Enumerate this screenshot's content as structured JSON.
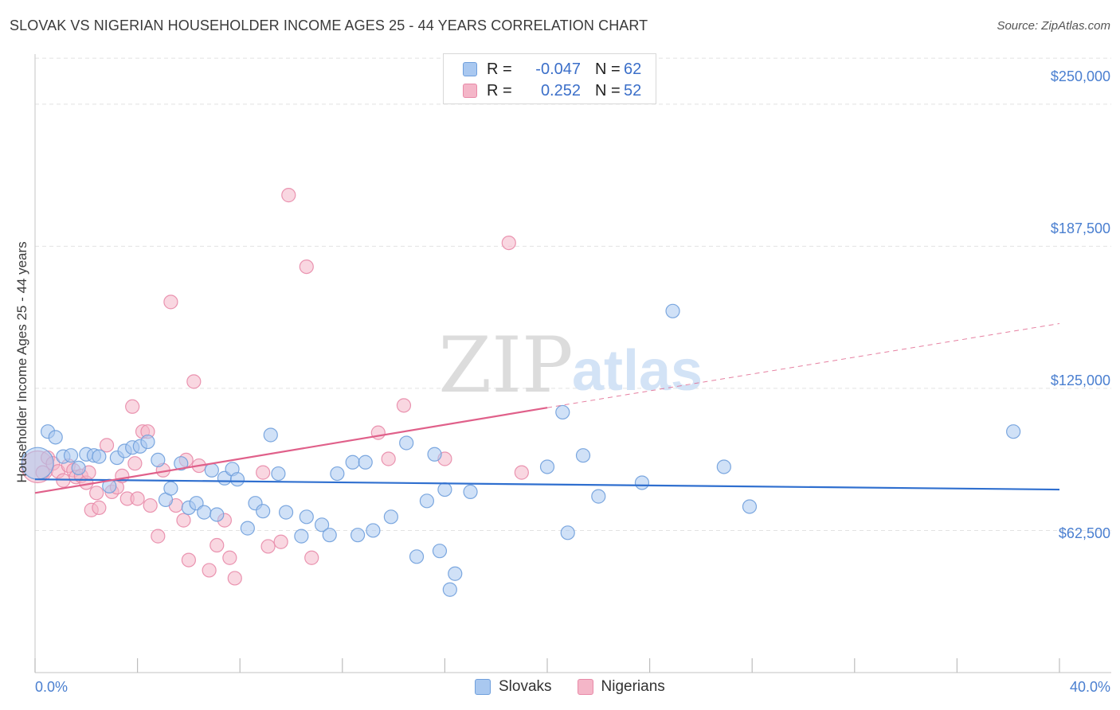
{
  "header": {
    "title": "SLOVAK VS NIGERIAN HOUSEHOLDER INCOME AGES 25 - 44 YEARS CORRELATION CHART",
    "source": "Source: ZipAtlas.com"
  },
  "watermark": {
    "part1": "ZIP",
    "part2": "atlas"
  },
  "legend_top": {
    "rows": [
      {
        "r_label": "R =",
        "r_value": "-0.047",
        "n_label": "N =",
        "n_value": "62",
        "color": "#a9c8f0"
      },
      {
        "r_label": "R =",
        "r_value": "0.252",
        "n_label": "N =",
        "n_value": "52",
        "color": "#f4b6c8"
      }
    ]
  },
  "legend_bottom": {
    "items": [
      "Slovaks",
      "Nigerians"
    ]
  },
  "colors": {
    "slovak_fill": "#a9c8f0",
    "slovak_stroke": "#6f9fdc",
    "slovak_line": "#2f6fcf",
    "nigerian_fill": "#f4b6c8",
    "nigerian_stroke": "#e88aa8",
    "nigerian_line": "#e0608a",
    "tick_label": "#4a7fd0",
    "grid": "#e2e2e2"
  },
  "chart_data": {
    "type": "scatter",
    "title": "SLOVAK VS NIGERIAN HOUSEHOLDER INCOME AGES 25 - 44 YEARS CORRELATION CHART",
    "xlabel": "",
    "ylabel": "Householder Income Ages 25 - 44 years",
    "xlim": [
      0,
      40
    ],
    "ylim": [
      0,
      272000
    ],
    "x_tick_labels": [
      "0.0%",
      "40.0%"
    ],
    "y_ticks": [
      62500,
      125000,
      187500,
      250000
    ],
    "y_tick_labels": [
      "$62,500",
      "$125,000",
      "$187,500",
      "$250,000"
    ],
    "grid": true,
    "legend_position": "top-center",
    "series": [
      {
        "name": "Slovaks",
        "r": -0.047,
        "n": 62,
        "trend": {
          "x": [
            0,
            40
          ],
          "y": [
            85000,
            80500
          ],
          "dashed_from": null
        },
        "points": [
          {
            "x": 0.1,
            "y": 92000,
            "big": true
          },
          {
            "x": 0.5,
            "y": 106000
          },
          {
            "x": 0.8,
            "y": 103500
          },
          {
            "x": 1.1,
            "y": 95000
          },
          {
            "x": 1.4,
            "y": 95500
          },
          {
            "x": 1.7,
            "y": 90000
          },
          {
            "x": 2.0,
            "y": 96000
          },
          {
            "x": 2.3,
            "y": 95500
          },
          {
            "x": 2.5,
            "y": 95000
          },
          {
            "x": 2.9,
            "y": 82000
          },
          {
            "x": 3.2,
            "y": 94500
          },
          {
            "x": 3.5,
            "y": 97500
          },
          {
            "x": 3.8,
            "y": 99000
          },
          {
            "x": 4.1,
            "y": 99500
          },
          {
            "x": 4.4,
            "y": 101500
          },
          {
            "x": 4.8,
            "y": 93500
          },
          {
            "x": 5.1,
            "y": 76000
          },
          {
            "x": 5.3,
            "y": 81000
          },
          {
            "x": 5.7,
            "y": 92000
          },
          {
            "x": 6.0,
            "y": 72500
          },
          {
            "x": 6.3,
            "y": 74500
          },
          {
            "x": 6.6,
            "y": 70500
          },
          {
            "x": 6.9,
            "y": 89000
          },
          {
            "x": 7.1,
            "y": 69500
          },
          {
            "x": 7.4,
            "y": 85500
          },
          {
            "x": 7.7,
            "y": 89500
          },
          {
            "x": 7.9,
            "y": 85000
          },
          {
            "x": 8.3,
            "y": 63500
          },
          {
            "x": 8.6,
            "y": 74500
          },
          {
            "x": 8.9,
            "y": 71000
          },
          {
            "x": 9.2,
            "y": 104500
          },
          {
            "x": 9.5,
            "y": 87500
          },
          {
            "x": 9.8,
            "y": 70500
          },
          {
            "x": 10.4,
            "y": 60000
          },
          {
            "x": 10.6,
            "y": 68500
          },
          {
            "x": 11.2,
            "y": 65000
          },
          {
            "x": 11.5,
            "y": 60500
          },
          {
            "x": 11.8,
            "y": 87500
          },
          {
            "x": 12.4,
            "y": 92500
          },
          {
            "x": 12.6,
            "y": 60500
          },
          {
            "x": 12.9,
            "y": 92500
          },
          {
            "x": 13.2,
            "y": 62500
          },
          {
            "x": 13.9,
            "y": 68500
          },
          {
            "x": 14.5,
            "y": 101000
          },
          {
            "x": 14.9,
            "y": 51000
          },
          {
            "x": 15.3,
            "y": 75500
          },
          {
            "x": 15.6,
            "y": 96000
          },
          {
            "x": 15.8,
            "y": 53500
          },
          {
            "x": 16.0,
            "y": 80500
          },
          {
            "x": 16.2,
            "y": 36500
          },
          {
            "x": 16.4,
            "y": 43500
          },
          {
            "x": 17.0,
            "y": 79500
          },
          {
            "x": 20.0,
            "y": 90500
          },
          {
            "x": 20.6,
            "y": 114500
          },
          {
            "x": 20.8,
            "y": 61500
          },
          {
            "x": 21.4,
            "y": 95500
          },
          {
            "x": 22.0,
            "y": 77500
          },
          {
            "x": 23.7,
            "y": 83500
          },
          {
            "x": 24.9,
            "y": 159000
          },
          {
            "x": 26.9,
            "y": 90500
          },
          {
            "x": 27.9,
            "y": 73000
          },
          {
            "x": 38.2,
            "y": 106000
          }
        ]
      },
      {
        "name": "Nigerians",
        "r": 0.252,
        "n": 52,
        "trend": {
          "x": [
            0,
            20,
            40
          ],
          "y": [
            79000,
            116500,
            153500
          ],
          "dashed_from": 20
        },
        "points": [
          {
            "x": 0.1,
            "y": 90500,
            "big": true
          },
          {
            "x": 0.3,
            "y": 88000
          },
          {
            "x": 0.5,
            "y": 94500
          },
          {
            "x": 0.7,
            "y": 92000
          },
          {
            "x": 0.9,
            "y": 88500
          },
          {
            "x": 1.1,
            "y": 84500
          },
          {
            "x": 1.3,
            "y": 91000
          },
          {
            "x": 1.5,
            "y": 89000
          },
          {
            "x": 1.6,
            "y": 86000
          },
          {
            "x": 1.8,
            "y": 86500
          },
          {
            "x": 2.0,
            "y": 83500
          },
          {
            "x": 2.1,
            "y": 88000
          },
          {
            "x": 2.2,
            "y": 71500
          },
          {
            "x": 2.4,
            "y": 79000
          },
          {
            "x": 2.5,
            "y": 72500
          },
          {
            "x": 2.8,
            "y": 100000
          },
          {
            "x": 3.0,
            "y": 79500
          },
          {
            "x": 3.2,
            "y": 81500
          },
          {
            "x": 3.4,
            "y": 86500
          },
          {
            "x": 3.6,
            "y": 76500
          },
          {
            "x": 3.8,
            "y": 117000
          },
          {
            "x": 3.9,
            "y": 92000
          },
          {
            "x": 4.0,
            "y": 76500
          },
          {
            "x": 4.2,
            "y": 106000
          },
          {
            "x": 4.4,
            "y": 106000
          },
          {
            "x": 4.5,
            "y": 73500
          },
          {
            "x": 4.8,
            "y": 60000
          },
          {
            "x": 5.0,
            "y": 89000
          },
          {
            "x": 5.3,
            "y": 163000
          },
          {
            "x": 5.5,
            "y": 73500
          },
          {
            "x": 5.8,
            "y": 67000
          },
          {
            "x": 5.9,
            "y": 93500
          },
          {
            "x": 6.0,
            "y": 49500
          },
          {
            "x": 6.2,
            "y": 128000
          },
          {
            "x": 6.4,
            "y": 91000
          },
          {
            "x": 6.8,
            "y": 45000
          },
          {
            "x": 7.1,
            "y": 56000
          },
          {
            "x": 7.4,
            "y": 67000
          },
          {
            "x": 7.6,
            "y": 50500
          },
          {
            "x": 7.8,
            "y": 41500
          },
          {
            "x": 8.9,
            "y": 88000
          },
          {
            "x": 9.1,
            "y": 55500
          },
          {
            "x": 9.6,
            "y": 57500
          },
          {
            "x": 9.9,
            "y": 210000
          },
          {
            "x": 10.6,
            "y": 178500
          },
          {
            "x": 10.8,
            "y": 50500
          },
          {
            "x": 13.4,
            "y": 105500
          },
          {
            "x": 13.8,
            "y": 94000
          },
          {
            "x": 14.4,
            "y": 117500
          },
          {
            "x": 16.0,
            "y": 94000
          },
          {
            "x": 18.5,
            "y": 189000
          },
          {
            "x": 19.0,
            "y": 88000
          }
        ]
      }
    ]
  }
}
